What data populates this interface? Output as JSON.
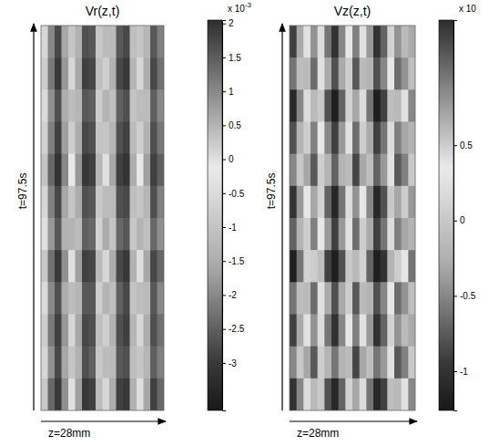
{
  "chart_data": [
    {
      "type": "heatmap",
      "title": "Vr(z,t)",
      "xlabel": "z=28mm",
      "ylabel": "t=97.5s",
      "tick_labels": false,
      "cells": [
        [
          -0.6,
          -2.0,
          -2.8,
          -1.6,
          0.3,
          -1.4,
          -2.7,
          -2.6,
          -0.9,
          0.4,
          -1.2,
          -2.6,
          -2.8,
          -1.1,
          0.3,
          -1.3,
          -2.6,
          -2.1
        ],
        [
          -0.8,
          -2.2,
          -3.0,
          -1.8,
          0.1,
          -1.6,
          -2.9,
          -2.8,
          -1.1,
          0.2,
          -1.4,
          -2.8,
          -3.0,
          -1.3,
          0.1,
          -1.5,
          -2.8,
          -2.3
        ],
        [
          -0.5,
          -1.9,
          -2.7,
          -1.5,
          0.4,
          -1.3,
          -2.6,
          -2.5,
          -0.8,
          0.5,
          -1.1,
          -2.5,
          -2.7,
          -1.0,
          0.4,
          -1.2,
          -2.5,
          -2.0
        ],
        [
          -0.7,
          -2.1,
          -2.9,
          -1.7,
          0.2,
          -1.5,
          -2.8,
          -2.7,
          -1.0,
          0.3,
          -1.3,
          -2.7,
          -2.9,
          -1.2,
          0.2,
          -1.4,
          -2.7,
          -2.2
        ],
        [
          -1.0,
          -2.4,
          -3.1,
          -2.0,
          -0.1,
          -1.8,
          -3.0,
          -2.9,
          -1.3,
          0.0,
          -1.6,
          -2.9,
          -3.1,
          -1.5,
          -0.1,
          -1.7,
          -2.9,
          -2.5
        ],
        [
          -0.6,
          -2.1,
          -2.8,
          -1.6,
          0.3,
          -1.5,
          -2.7,
          -2.6,
          -0.9,
          0.4,
          -1.2,
          -2.7,
          -2.8,
          -1.1,
          0.3,
          -1.3,
          -2.7,
          -2.1
        ],
        [
          -0.4,
          -1.8,
          -2.6,
          -1.4,
          0.5,
          -1.2,
          -2.5,
          -2.4,
          -0.7,
          0.6,
          -1.0,
          -2.4,
          -2.6,
          -0.9,
          0.5,
          -1.1,
          -2.4,
          -1.9
        ],
        [
          -0.9,
          -2.3,
          -3.0,
          -1.9,
          0.0,
          -1.7,
          -2.9,
          -2.8,
          -1.2,
          0.1,
          -1.5,
          -2.8,
          -3.0,
          -1.4,
          0.0,
          -1.6,
          -2.8,
          -2.4
        ],
        [
          -0.5,
          -2.0,
          -2.7,
          -1.5,
          0.4,
          -1.3,
          -2.6,
          -2.6,
          -0.8,
          0.5,
          -1.1,
          -2.5,
          -2.8,
          -1.0,
          0.4,
          -1.2,
          -2.6,
          -2.0
        ],
        [
          -0.8,
          -2.2,
          -2.9,
          -1.8,
          0.1,
          -1.6,
          -2.8,
          -2.7,
          -1.1,
          0.2,
          -1.4,
          -2.7,
          -2.9,
          -1.3,
          0.1,
          -1.5,
          -2.7,
          -2.3
        ],
        [
          -0.6,
          -1.9,
          -2.8,
          -1.6,
          0.3,
          -1.4,
          -2.7,
          -2.5,
          -0.9,
          0.4,
          -1.2,
          -2.6,
          -2.7,
          -1.1,
          0.3,
          -1.3,
          -2.5,
          -2.1
        ],
        [
          -0.9,
          -2.4,
          -3.0,
          -1.9,
          0.0,
          -1.7,
          -3.0,
          -2.9,
          -1.2,
          0.1,
          -1.5,
          -2.9,
          -3.0,
          -1.4,
          0.0,
          -1.6,
          -2.9,
          -2.4
        ]
      ],
      "color_range": [
        -3.7,
        2.05
      ],
      "color_ticks": [
        2,
        1.5,
        1,
        0.5,
        0,
        -0.5,
        -1,
        -1.5,
        -2,
        -2.5,
        -3
      ],
      "color_label": "x 10",
      "color_exponent": "-3"
    },
    {
      "type": "heatmap",
      "title": "Vz(z,t)",
      "xlabel": "z=28mm",
      "ylabel": "t=97.5s",
      "tick_labels": false,
      "cells": [
        [
          -0.9,
          -0.3,
          0.4,
          0.8,
          0.2,
          -0.6,
          -1.0,
          -0.5,
          0.3,
          0.9,
          0.4,
          -0.4,
          -1.0,
          -0.7,
          0.1,
          0.8,
          0.6,
          -0.3
        ],
        [
          -0.6,
          -0.1,
          0.6,
          1.0,
          0.4,
          -0.3,
          -0.8,
          -0.3,
          0.5,
          1.1,
          0.6,
          -0.2,
          -0.8,
          -0.5,
          0.3,
          1.0,
          0.8,
          -0.1
        ],
        [
          -1.1,
          -0.5,
          0.2,
          0.6,
          0.0,
          -0.8,
          -1.2,
          -0.7,
          0.1,
          0.7,
          0.2,
          -0.6,
          -1.2,
          -0.9,
          -0.1,
          0.6,
          0.4,
          -0.5
        ],
        [
          -0.8,
          -0.2,
          0.5,
          0.9,
          0.3,
          -0.5,
          -0.9,
          -0.4,
          0.4,
          1.0,
          0.5,
          -0.3,
          -0.9,
          -0.6,
          0.2,
          0.9,
          0.7,
          -0.2
        ],
        [
          -0.5,
          0.0,
          0.7,
          1.1,
          0.5,
          -0.2,
          -0.7,
          -0.2,
          0.6,
          1.2,
          0.7,
          -0.1,
          -0.7,
          -0.4,
          0.4,
          1.1,
          0.9,
          0.0
        ],
        [
          -1.0,
          -0.4,
          0.3,
          0.7,
          0.1,
          -0.7,
          -1.1,
          -0.6,
          0.2,
          0.8,
          0.3,
          -0.5,
          -1.1,
          -0.8,
          0.0,
          0.7,
          0.5,
          -0.4
        ],
        [
          -0.7,
          -0.2,
          0.5,
          0.9,
          0.3,
          -0.4,
          -0.9,
          -0.4,
          0.4,
          1.0,
          0.5,
          -0.3,
          -0.9,
          -0.6,
          0.2,
          0.9,
          0.7,
          -0.2
        ],
        [
          -1.2,
          -0.6,
          0.1,
          0.5,
          -0.1,
          -0.9,
          -1.2,
          -0.8,
          0.0,
          0.6,
          0.1,
          -0.7,
          -1.2,
          -1.0,
          -0.2,
          0.5,
          0.3,
          -0.6
        ],
        [
          -0.6,
          -0.1,
          0.6,
          1.0,
          0.4,
          -0.3,
          -0.8,
          -0.3,
          0.5,
          1.1,
          0.6,
          -0.2,
          -0.8,
          -0.5,
          0.3,
          1.0,
          0.8,
          -0.1
        ],
        [
          -0.9,
          -0.3,
          0.4,
          0.8,
          0.2,
          -0.6,
          -1.0,
          -0.5,
          0.3,
          0.9,
          0.4,
          -0.4,
          -1.0,
          -0.7,
          0.1,
          0.8,
          0.6,
          -0.3
        ],
        [
          -0.5,
          0.0,
          0.7,
          1.1,
          0.5,
          -0.2,
          -0.6,
          -0.2,
          0.6,
          1.2,
          0.7,
          -0.1,
          -0.6,
          -0.4,
          0.4,
          1.1,
          0.9,
          0.0
        ],
        [
          -1.0,
          -0.5,
          0.2,
          0.6,
          0.0,
          -0.8,
          -1.1,
          -0.7,
          0.1,
          0.7,
          0.2,
          -0.6,
          -1.1,
          -0.9,
          -0.1,
          0.6,
          0.4,
          -0.5
        ]
      ],
      "color_range": [
        -1.26,
        1.33
      ],
      "color_ticks": [
        0.5,
        0,
        -0.5,
        -1
      ],
      "color_label": "x 10"
    }
  ]
}
